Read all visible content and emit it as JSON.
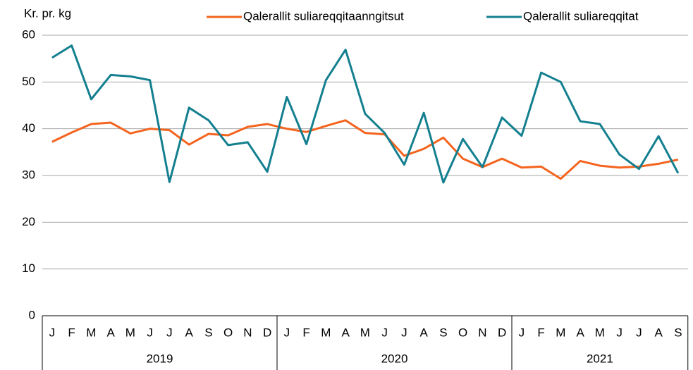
{
  "chart_data": {
    "type": "line",
    "y_label": "Kr. pr. kg",
    "years": [
      {
        "label": "2019",
        "months": [
          "J",
          "F",
          "M",
          "A",
          "M",
          "J",
          "J",
          "A",
          "S",
          "O",
          "N",
          "D"
        ]
      },
      {
        "label": "2020",
        "months": [
          "J",
          "F",
          "M",
          "A",
          "M",
          "J",
          "J",
          "A",
          "S",
          "O",
          "N",
          "D"
        ]
      },
      {
        "label": "2021",
        "months": [
          "J",
          "F",
          "M",
          "A",
          "M",
          "J",
          "J",
          "A",
          "S"
        ]
      }
    ],
    "series": [
      {
        "name": "Qalerallit suliareqqitaanngitsut",
        "color": "#f4641e",
        "values": [
          37.2,
          39.2,
          41,
          41.3,
          39,
          40,
          39.7,
          36.6,
          38.9,
          38.6,
          40.4,
          41,
          40,
          39.3,
          40.6,
          41.8,
          39.1,
          38.8,
          34.2,
          35.7,
          38.1,
          33.6,
          31.8,
          33.6,
          31.7,
          31.9,
          29.3,
          33.1,
          32.1,
          31.7,
          31.9,
          32.5,
          33.4
        ]
      },
      {
        "name": "Qalerallit suliareqqitat",
        "color": "#137f8f",
        "values": [
          55.2,
          57.8,
          46.3,
          51.5,
          51.2,
          50.4,
          28.6,
          44.5,
          41.8,
          36.5,
          37.1,
          30.8,
          46.8,
          36.7,
          50.4,
          56.9,
          43.2,
          39.1,
          32.3,
          43.4,
          28.5,
          37.8,
          31.8,
          42.4,
          38.5,
          52,
          50,
          41.6,
          41,
          34.5,
          31.4,
          38.4,
          30.5
        ]
      }
    ],
    "ylim": [
      0,
      60
    ],
    "yticks": [
      0,
      10,
      20,
      30,
      40,
      50,
      60
    ],
    "grid": true
  }
}
